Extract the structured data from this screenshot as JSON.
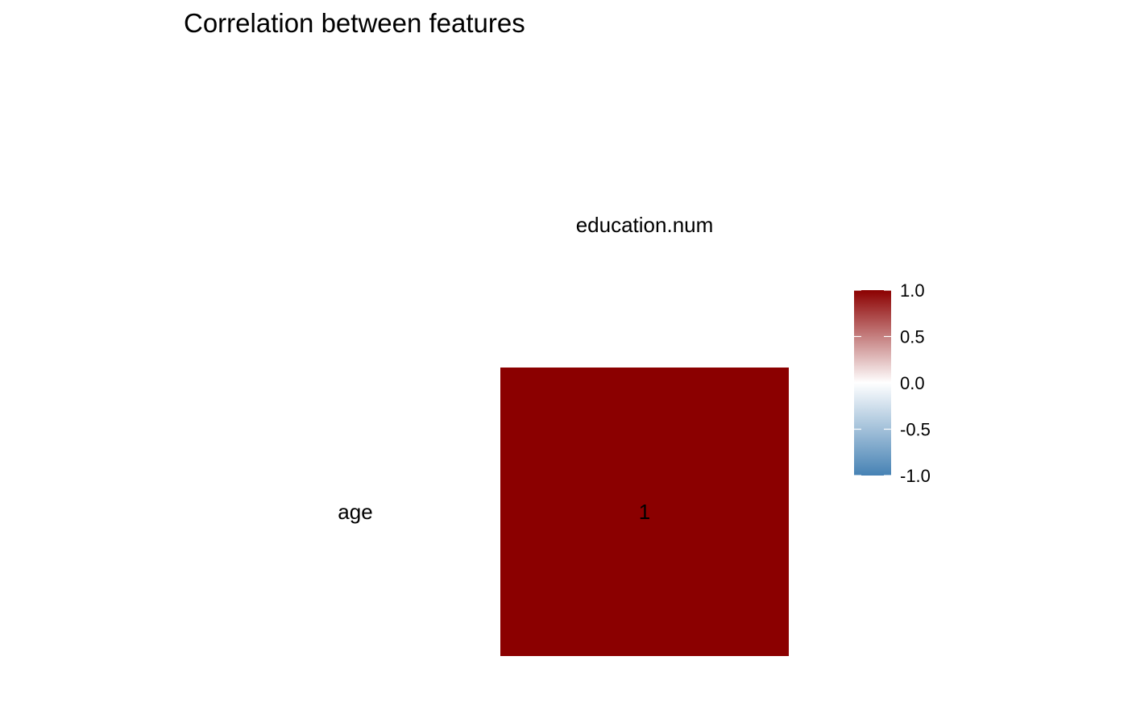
{
  "chart_data": {
    "type": "heatmap",
    "title": "Correlation between features",
    "x_categories": [
      "education.num"
    ],
    "y_categories": [
      "age"
    ],
    "cells": [
      {
        "x": "education.num",
        "y": "age",
        "value": 1,
        "label": "1"
      }
    ],
    "color_scale": {
      "min": -1.0,
      "max": 1.0,
      "low_color": "#4682B4",
      "mid_color": "#FFFFFF",
      "high_color": "#8B0000",
      "ticks": [
        1.0,
        0.5,
        0.0,
        -0.5,
        -1.0
      ],
      "tick_labels": [
        "1.0",
        "0.5",
        "0.0",
        "-0.5",
        "-1.0"
      ]
    },
    "legend_position": "right",
    "grid": false
  }
}
